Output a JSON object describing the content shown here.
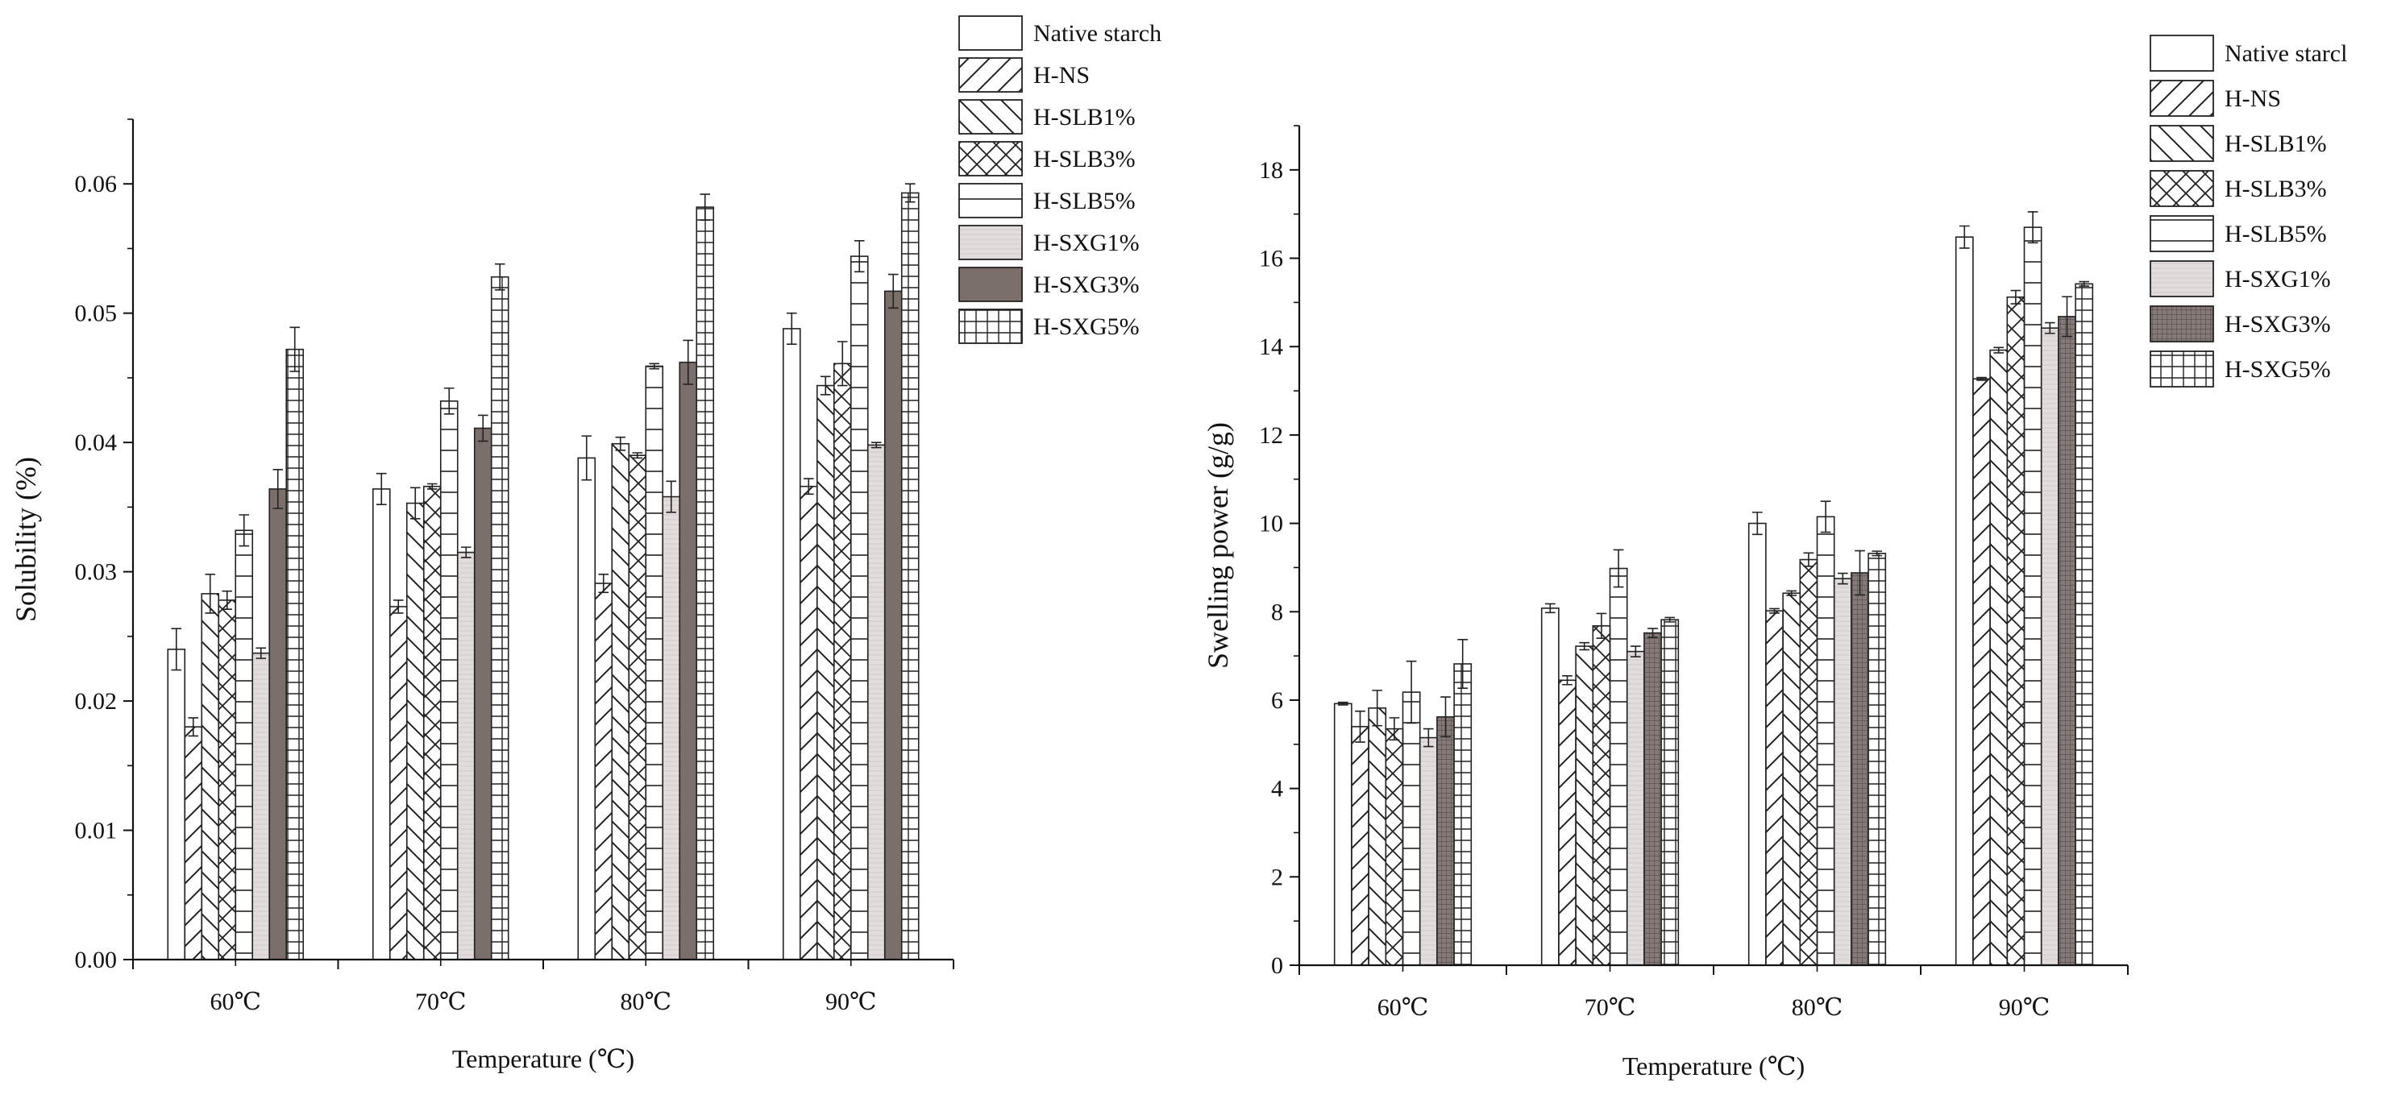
{
  "chart_data": [
    {
      "type": "bar",
      "ylabel": "Solubility (%)",
      "xlabel": "Temperature (℃)",
      "categories": [
        "60℃",
        "70℃",
        "80℃",
        "90℃"
      ],
      "ylim": [
        0,
        0.065
      ],
      "yticks": [
        "0.00",
        "0.01",
        "0.02",
        "0.03",
        "0.04",
        "0.05",
        "0.06"
      ],
      "legend_position": "top-right",
      "series": [
        {
          "name": "Native starch",
          "pattern": "blank",
          "values": [
            0.024,
            0.0364,
            0.0388,
            0.0488
          ],
          "errors": [
            0.0016,
            0.0012,
            0.0017,
            0.0012
          ]
        },
        {
          "name": "H-NS",
          "pattern": "fwdiag",
          "values": [
            0.018,
            0.0273,
            0.0291,
            0.0366
          ],
          "errors": [
            0.0007,
            0.0005,
            0.0007,
            0.0006
          ]
        },
        {
          "name": "H-SLB1%",
          "pattern": "backdiag",
          "values": [
            0.0283,
            0.0353,
            0.0399,
            0.0444
          ],
          "errors": [
            0.0015,
            0.0012,
            0.0005,
            0.0007
          ]
        },
        {
          "name": "H-SLB3%",
          "pattern": "cross",
          "values": [
            0.0278,
            0.0366,
            0.039,
            0.0461
          ],
          "errors": [
            0.0007,
            0.0002,
            0.0002,
            0.0017
          ]
        },
        {
          "name": "H-SLB5%",
          "pattern": "hlines",
          "values": [
            0.0332,
            0.0432,
            0.0459,
            0.0544
          ],
          "errors": [
            0.0012,
            0.001,
            0.0002,
            0.0012
          ]
        },
        {
          "name": "H-SXG1%",
          "pattern": "lightgray",
          "values": [
            0.0237,
            0.0315,
            0.0358,
            0.0398
          ],
          "errors": [
            0.0004,
            0.0004,
            0.0012,
            0.0002
          ]
        },
        {
          "name": "H-SXG3%",
          "pattern": "darkgray",
          "values": [
            0.0364,
            0.0411,
            0.0462,
            0.0517
          ],
          "errors": [
            0.0015,
            0.001,
            0.0017,
            0.0013
          ]
        },
        {
          "name": "H-SXG5%",
          "pattern": "grid",
          "values": [
            0.0472,
            0.0528,
            0.0582,
            0.0593
          ],
          "errors": [
            0.0017,
            0.001,
            0.001,
            0.0007
          ]
        }
      ]
    },
    {
      "type": "bar",
      "ylabel": "Swelling power (g/g)",
      "xlabel": "Temperature (℃)",
      "categories": [
        "60℃",
        "70℃",
        "80℃",
        "90℃"
      ],
      "ylim": [
        0,
        19
      ],
      "yticks": [
        "0",
        "2",
        "4",
        "6",
        "8",
        "10",
        "12",
        "14",
        "16",
        "18"
      ],
      "legend_position": "top-right",
      "series": [
        {
          "name": "Native starcl",
          "pattern": "blank",
          "values": [
            5.92,
            8.08,
            10.0,
            16.48
          ],
          "errors": [
            0.03,
            0.1,
            0.25,
            0.25
          ]
        },
        {
          "name": "H-NS",
          "pattern": "fwdiag",
          "values": [
            5.4,
            6.45,
            8.02,
            13.27
          ],
          "errors": [
            0.35,
            0.1,
            0.05,
            0.03
          ]
        },
        {
          "name": "H-SLB1%",
          "pattern": "backdiag",
          "values": [
            5.82,
            7.22,
            8.42,
            13.92
          ],
          "errors": [
            0.4,
            0.08,
            0.05,
            0.06
          ]
        },
        {
          "name": "H-SLB3%",
          "pattern": "cross",
          "values": [
            5.35,
            7.68,
            9.18,
            15.12
          ],
          "errors": [
            0.25,
            0.28,
            0.15,
            0.15
          ]
        },
        {
          "name": "H-SLB5%",
          "pattern": "hlines",
          "values": [
            6.18,
            8.98,
            10.15,
            16.7
          ],
          "errors": [
            0.7,
            0.42,
            0.35,
            0.35
          ]
        },
        {
          "name": "H-SXG1%",
          "pattern": "lightgray",
          "values": [
            5.15,
            7.1,
            8.75,
            14.42
          ],
          "errors": [
            0.2,
            0.12,
            0.12,
            0.12
          ]
        },
        {
          "name": "H-SXG3%",
          "pattern": "darkmesh",
          "values": [
            5.62,
            7.52,
            8.88,
            14.68
          ],
          "errors": [
            0.45,
            0.1,
            0.5,
            0.45
          ]
        },
        {
          "name": "H-SXG5%",
          "pattern": "grid",
          "values": [
            6.82,
            7.82,
            9.32,
            15.42
          ],
          "errors": [
            0.55,
            0.05,
            0.05,
            0.05
          ]
        }
      ]
    }
  ]
}
